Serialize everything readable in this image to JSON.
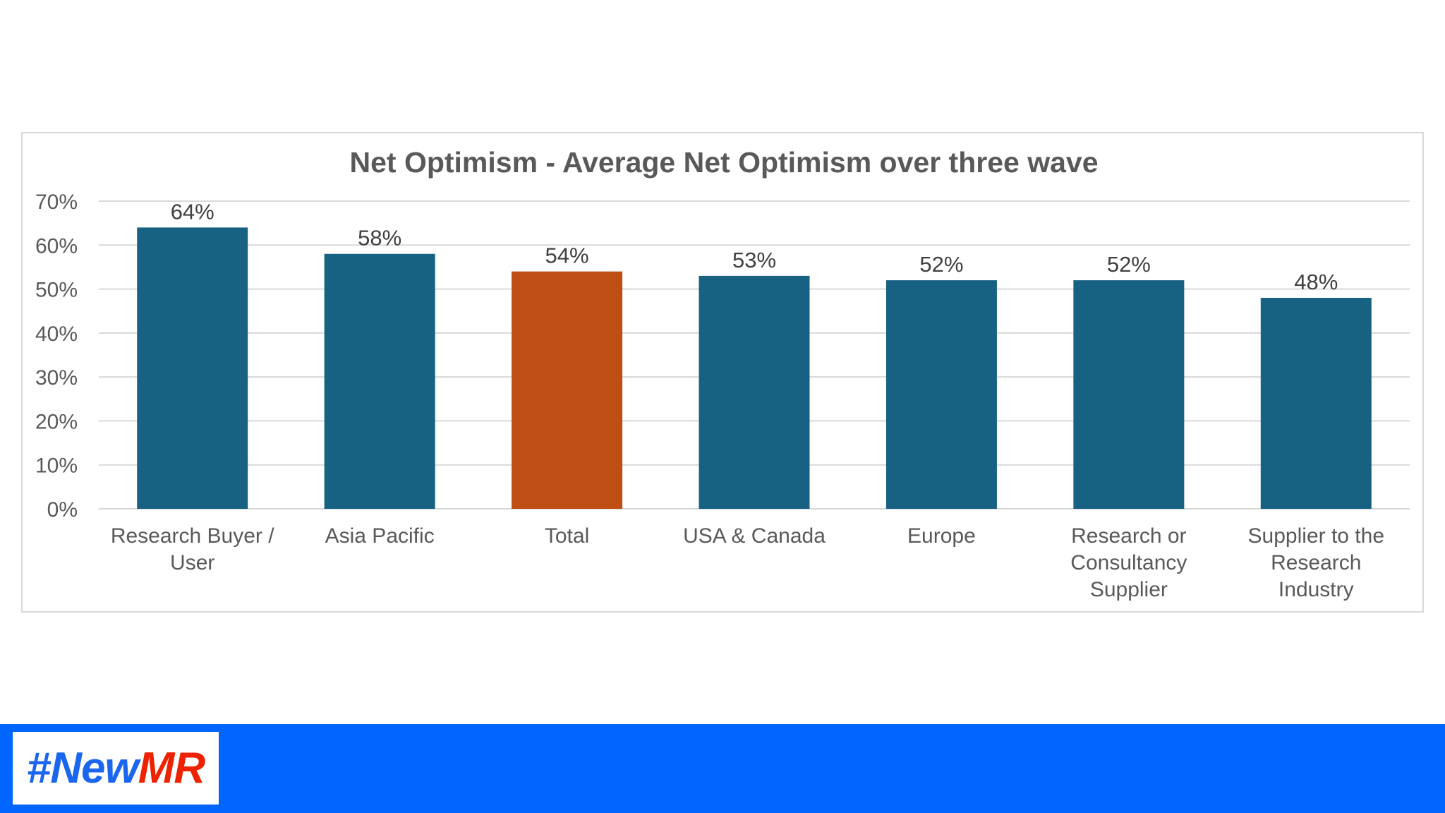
{
  "chart_data": {
    "type": "bar",
    "title": "Net Optimism - Average Net Optimism over three wave",
    "categories": [
      "Research Buyer / User",
      "Asia Pacific",
      "Total",
      "USA & Canada",
      "Europe",
      "Research or Consultancy Supplier",
      "Supplier to the Research Industry"
    ],
    "category_lines": [
      [
        "Research Buyer /",
        "User"
      ],
      [
        "Asia Pacific"
      ],
      [
        "Total"
      ],
      [
        "USA & Canada"
      ],
      [
        "Europe"
      ],
      [
        "Research or",
        "Consultancy",
        "Supplier"
      ],
      [
        "Supplier to the",
        "Research",
        "Industry"
      ]
    ],
    "values": [
      64,
      58,
      54,
      53,
      52,
      52,
      48
    ],
    "data_labels": [
      "64%",
      "58%",
      "54%",
      "53%",
      "52%",
      "52%",
      "48%"
    ],
    "ylim": [
      0,
      70
    ],
    "yticks": [
      0,
      10,
      20,
      30,
      40,
      50,
      60,
      70
    ],
    "ytick_labels": [
      "0%",
      "10%",
      "20%",
      "30%",
      "40%",
      "50%",
      "60%",
      "70%"
    ],
    "xlabel": "",
    "ylabel": "",
    "grid": true,
    "legend": "none",
    "colors": {
      "default": "#176282",
      "highlight": "#bf4e15",
      "highlight_category": "Total",
      "grid": "#d9d9d9",
      "text": "#595959"
    }
  },
  "footer": {
    "background": "#0066ff",
    "logo": {
      "part1": "#NewMR",
      "hash_new": "#New",
      "mr": "MR",
      "color1": "#1a66ee",
      "color2": "#ee2200"
    }
  }
}
